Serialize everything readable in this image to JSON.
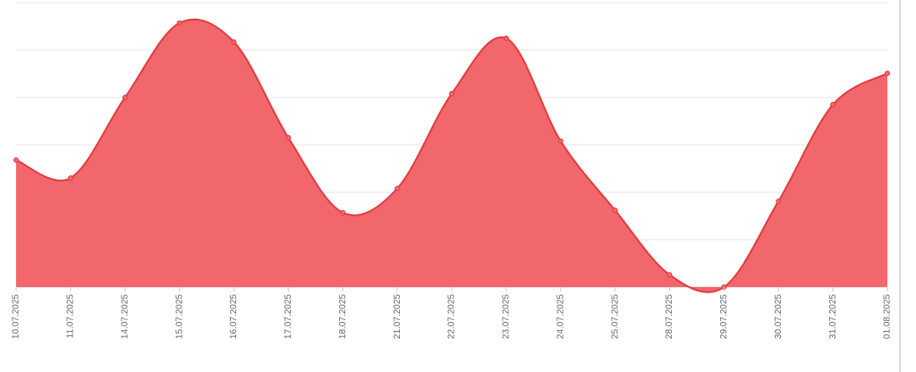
{
  "chart_data": {
    "type": "area",
    "categories": [
      "10.07.2025",
      "11.07.2025",
      "14.07.2025",
      "15.07.2025",
      "16.07.2025",
      "17.07.2025",
      "18.07.2025",
      "21.07.2025",
      "22.07.2025",
      "23.07.2025",
      "24.07.2025",
      "25.07.2025",
      "28.07.2025",
      "29.07.2025",
      "30.07.2025",
      "31.07.2025",
      "01.08.2025"
    ],
    "values": [
      2.68,
      2.3,
      4.0,
      5.57,
      5.17,
      3.15,
      1.57,
      2.08,
      4.08,
      5.25,
      3.08,
      1.62,
      0.26,
      0.0,
      1.81,
      3.85,
      4.51
    ],
    "color": "#f2676b",
    "line_color": "#e23b3f",
    "ylim": [
      0,
      6
    ],
    "grid_lines": [
      0,
      1,
      2,
      3,
      4,
      5,
      6
    ],
    "grid": true
  }
}
